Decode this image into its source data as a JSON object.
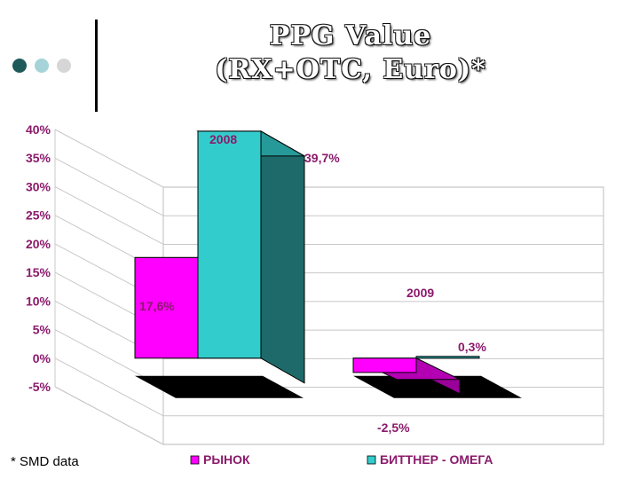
{
  "title_line1": "PPG Value",
  "title_line2": "(RX+OTC, Euro)*",
  "footnote": "* SMD data",
  "decor_dots": [
    {
      "name": "dark-teal-dot",
      "color": "#1e5a5a"
    },
    {
      "name": "light-teal-dot",
      "color": "#a6d3d7"
    },
    {
      "name": "grey-dot",
      "color": "#d6d6d6"
    }
  ],
  "chart_data": {
    "type": "bar",
    "categories": [
      "2008",
      "2009"
    ],
    "series": [
      {
        "name": "РЫНОК",
        "color": "#ff00ff",
        "values": [
          17.6,
          -2.5
        ],
        "labels": [
          "17,6%",
          "-2,5%"
        ]
      },
      {
        "name": "БИТТНЕР - ОМЕГА",
        "color": "#33cccc",
        "values": [
          39.7,
          0.3
        ],
        "labels": [
          "39,7%",
          "0,3%"
        ]
      }
    ],
    "yticks": [
      "40%",
      "35%",
      "30%",
      "25%",
      "20%",
      "15%",
      "10%",
      "5%",
      "0%",
      "-5%"
    ],
    "ytick_values": [
      40,
      35,
      30,
      25,
      20,
      15,
      10,
      5,
      0,
      -5
    ],
    "ylim": [
      -5,
      40
    ],
    "grid": true,
    "legend_position": "bottom",
    "label_color": "#8b1a6b"
  }
}
